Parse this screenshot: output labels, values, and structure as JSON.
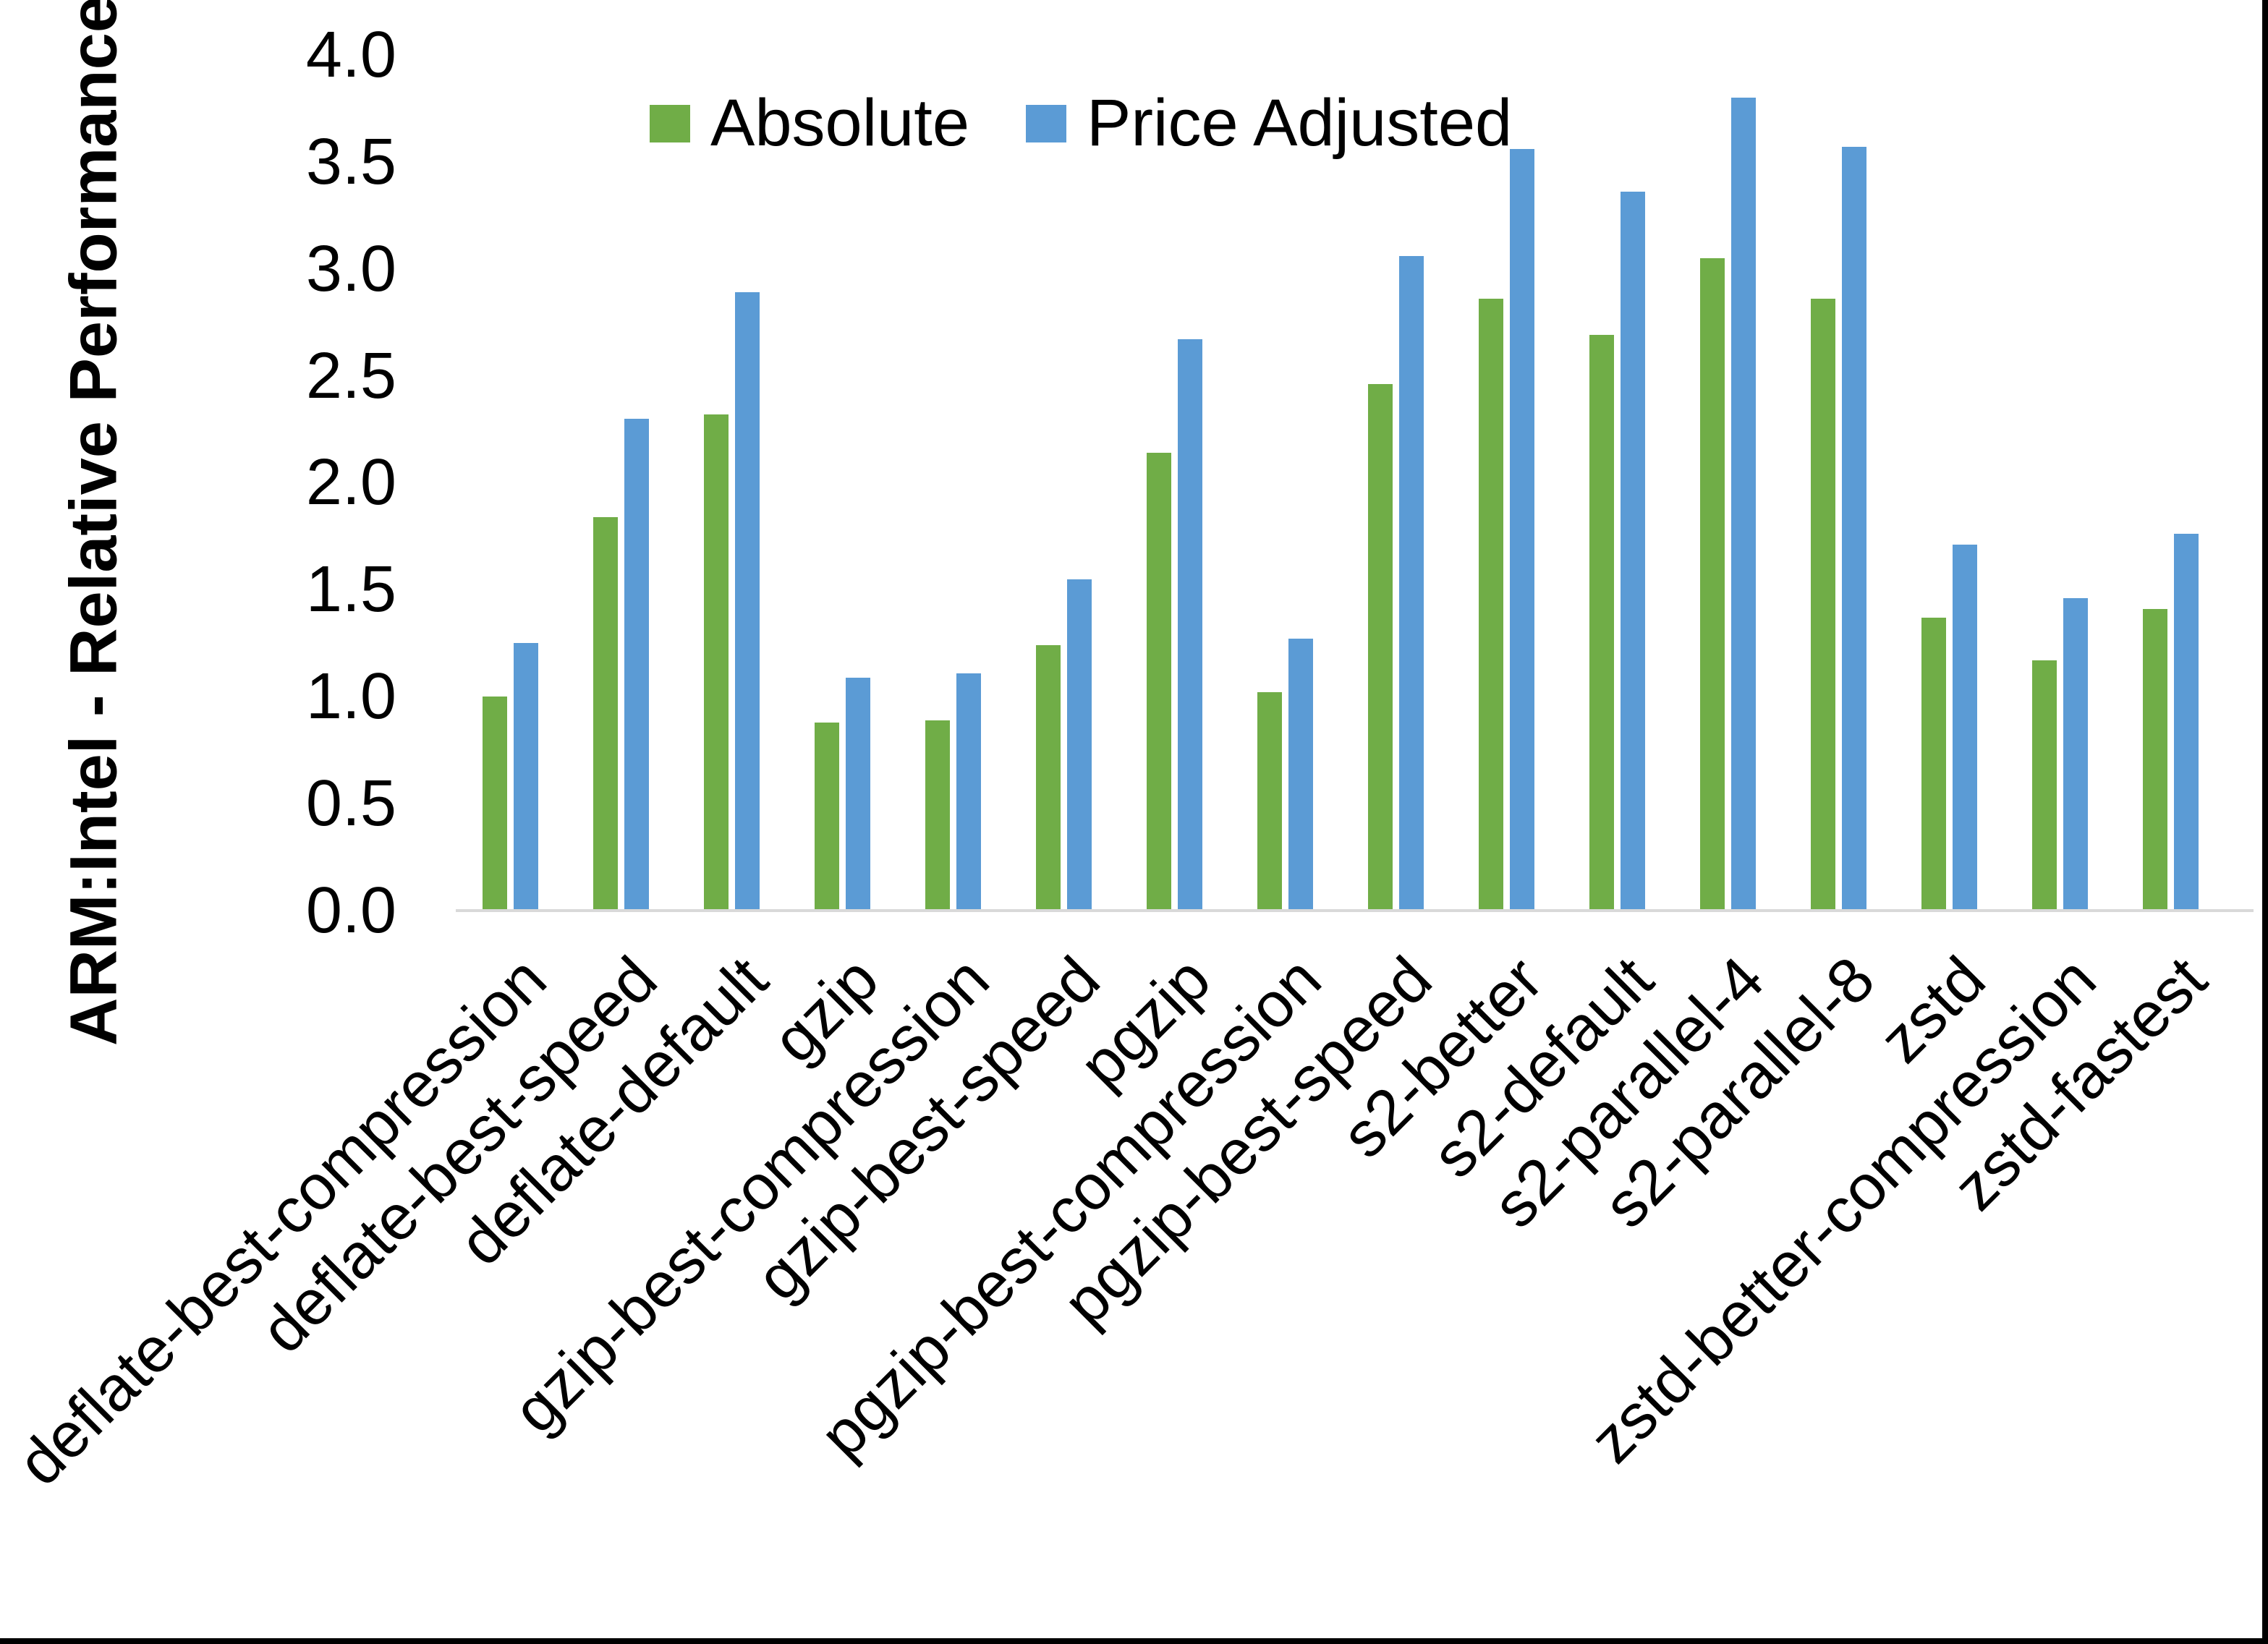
{
  "chart_data": {
    "type": "bar",
    "title": "",
    "xlabel": "",
    "ylabel": "ARM:Intel - Relative Performance",
    "ylim": [
      0.0,
      4.0
    ],
    "ytick_step": 0.5,
    "yticks": [
      "4.0",
      "3.5",
      "3.0",
      "2.5",
      "2.0",
      "1.5",
      "1.0",
      "0.5",
      "0.0"
    ],
    "grid": false,
    "legend_position": "top-center",
    "categories": [
      "deflate-best-compression",
      "deflate-best-speed",
      "deflate-default",
      "gzip",
      "gzip-best-compression",
      "gzip-best-speed",
      "pgzip",
      "pgzip-best-compression",
      "pgzip-best-speed",
      "s2-better",
      "s2-default",
      "s2-parallel-4",
      "s2-parallel-8",
      "zstd",
      "zstd-better-compression",
      "zstd-fastest"
    ],
    "series": [
      {
        "name": "Absolute",
        "color": "#70AD47",
        "values": [
          1.0,
          1.84,
          2.32,
          0.88,
          0.89,
          1.24,
          2.14,
          1.02,
          2.46,
          2.86,
          2.69,
          3.05,
          2.86,
          1.37,
          1.17,
          1.41
        ]
      },
      {
        "name": "Price Adjusted",
        "color": "#5B9BD5",
        "values": [
          1.25,
          2.3,
          2.89,
          1.09,
          1.11,
          1.55,
          2.67,
          1.27,
          3.06,
          3.56,
          3.36,
          3.8,
          3.57,
          1.71,
          1.46,
          1.76
        ]
      }
    ],
    "axis_line_color": "#D9D9D9",
    "text_color": "#000000"
  },
  "frame": {
    "right_border_color": "#000000",
    "bottom_border_color": "#000000"
  }
}
